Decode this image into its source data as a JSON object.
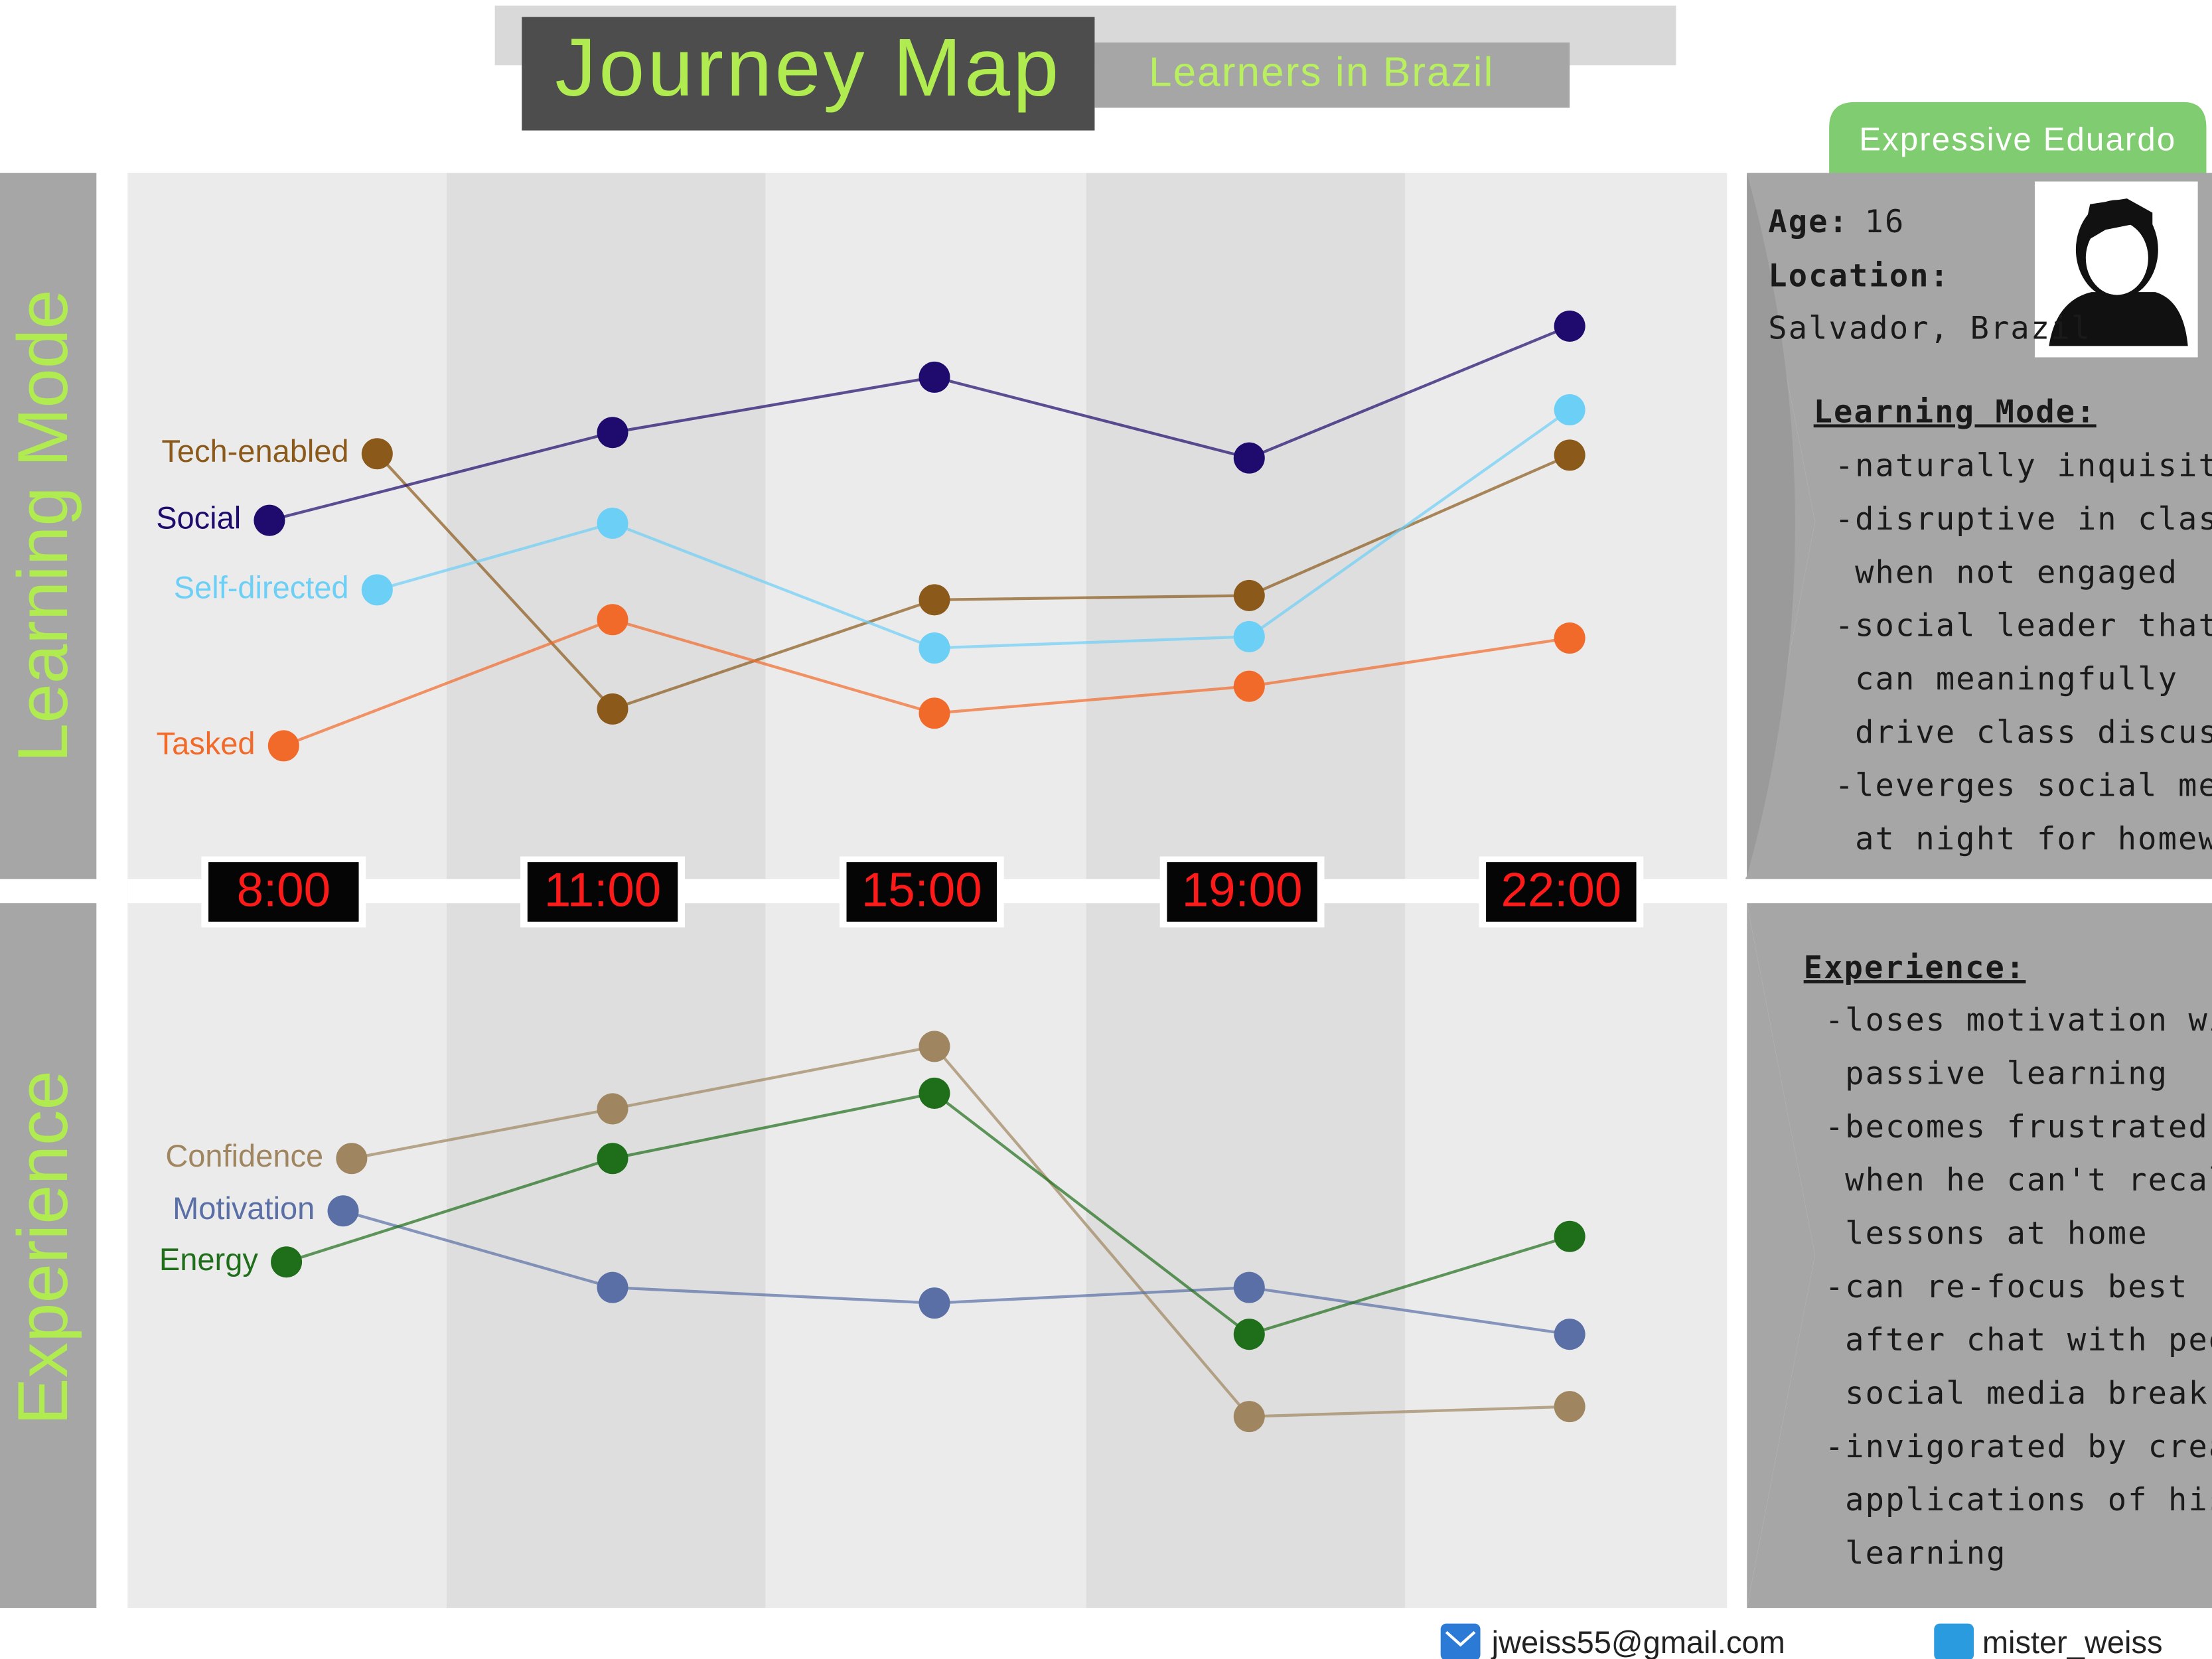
{
  "header": {
    "title": "Journey Map",
    "subtitle": "Learners in Brazil",
    "persona": "Expressive Eduardo"
  },
  "times": [
    "8:00",
    "11:00",
    "15:00",
    "19:00",
    "22:00"
  ],
  "learning_mode": {
    "label": "Learning Mode",
    "series": [
      {
        "name": "Tech-enabled",
        "color": "#8b5a1a"
      },
      {
        "name": "Social",
        "color": "#1f0a6e"
      },
      {
        "name": "Self-directed",
        "color": "#6ccff6"
      },
      {
        "name": "Tasked",
        "color": "#f26a2a"
      }
    ]
  },
  "experience": {
    "label": "Experience",
    "series": [
      {
        "name": "Confidence",
        "color": "#a08660"
      },
      {
        "name": "Motivation",
        "color": "#5a6fa6"
      },
      {
        "name": "Energy",
        "color": "#1f6e1a"
      }
    ]
  },
  "profile": {
    "age_label": "Age:",
    "age": "16",
    "location_label": "Location:",
    "location": "Salvador, Brazil",
    "learning_heading": "Learning Mode:",
    "learning_lines": [
      "-naturally inquisitive",
      "-disruptive in class",
      " when not engaged",
      "-social leader that",
      " can meaningfully",
      " drive class discussion",
      "-leverges social media",
      " at night for homework"
    ],
    "experience_heading": "Experience:",
    "experience_lines": [
      "-loses motivation with",
      " passive learning",
      "-becomes frustrated",
      " when he can't recall",
      " lessons at home",
      "-can re-focus best",
      " after chat with peer or",
      " social media break",
      "-invigorated by creative",
      " applications of his",
      " learning"
    ]
  },
  "footer": {
    "email": "jweiss55@gmail.com",
    "twitter": "mister_weiss"
  }
}
